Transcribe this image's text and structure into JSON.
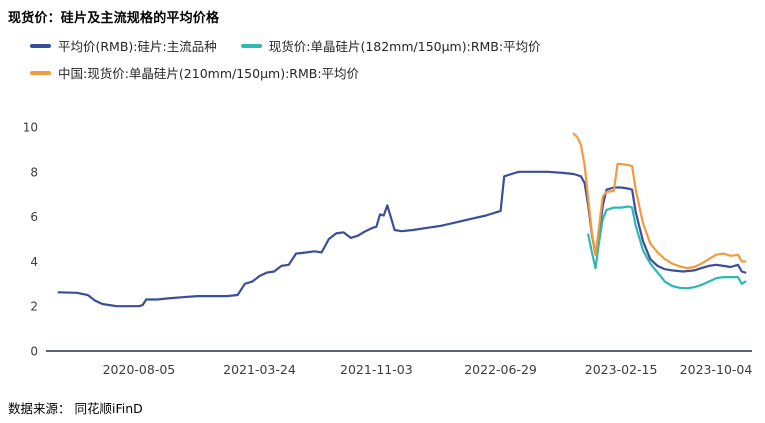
{
  "title": "现货价：硅片及主流规格的平均价格",
  "footer": "数据来源： 同花顺iFinD",
  "chart_data": {
    "type": "line",
    "title": "现货价：硅片及主流规格的平均价格",
    "xlabel": "",
    "ylabel": "",
    "ylim": [
      0,
      10
    ],
    "yticks": [
      0,
      2,
      4,
      6,
      8,
      10
    ],
    "grid": false,
    "legend_position": "top-left",
    "x_domain": [
      "2020-03-01",
      "2023-10-20"
    ],
    "xticks": [
      "2020-08-05",
      "2021-03-24",
      "2021-11-03",
      "2022-06-29",
      "2023-02-15",
      "2023-10-04"
    ],
    "series": [
      {
        "name": "平均价(RMB):硅片:主流品种",
        "color": "#3b4e9a",
        "points": [
          [
            "2020-03-04",
            2.62
          ],
          [
            "2020-04-08",
            2.6
          ],
          [
            "2020-04-29",
            2.5
          ],
          [
            "2020-05-13",
            2.25
          ],
          [
            "2020-05-27",
            2.1
          ],
          [
            "2020-06-10",
            2.05
          ],
          [
            "2020-06-24",
            2.0
          ],
          [
            "2020-07-22",
            2.0
          ],
          [
            "2020-08-05",
            2.0
          ],
          [
            "2020-08-12",
            2.05
          ],
          [
            "2020-08-19",
            2.3
          ],
          [
            "2020-09-09",
            2.3
          ],
          [
            "2020-09-30",
            2.35
          ],
          [
            "2020-10-28",
            2.4
          ],
          [
            "2020-11-25",
            2.45
          ],
          [
            "2020-12-23",
            2.45
          ],
          [
            "2021-01-20",
            2.45
          ],
          [
            "2021-02-10",
            2.5
          ],
          [
            "2021-02-24",
            3.0
          ],
          [
            "2021-03-10",
            3.1
          ],
          [
            "2021-03-24",
            3.35
          ],
          [
            "2021-04-07",
            3.5
          ],
          [
            "2021-04-21",
            3.55
          ],
          [
            "2021-05-05",
            3.8
          ],
          [
            "2021-05-19",
            3.85
          ],
          [
            "2021-06-02",
            4.35
          ],
          [
            "2021-06-23",
            4.4
          ],
          [
            "2021-07-07",
            4.45
          ],
          [
            "2021-07-21",
            4.4
          ],
          [
            "2021-08-04",
            5.0
          ],
          [
            "2021-08-18",
            5.25
          ],
          [
            "2021-09-01",
            5.3
          ],
          [
            "2021-09-15",
            5.05
          ],
          [
            "2021-09-29",
            5.15
          ],
          [
            "2021-10-13",
            5.35
          ],
          [
            "2021-10-27",
            5.5
          ],
          [
            "2021-11-03",
            5.55
          ],
          [
            "2021-11-10",
            6.1
          ],
          [
            "2021-11-17",
            6.05
          ],
          [
            "2021-11-24",
            6.5
          ],
          [
            "2021-12-01",
            5.95
          ],
          [
            "2021-12-08",
            5.4
          ],
          [
            "2021-12-22",
            5.35
          ],
          [
            "2022-01-12",
            5.4
          ],
          [
            "2022-02-09",
            5.5
          ],
          [
            "2022-03-09",
            5.6
          ],
          [
            "2022-04-06",
            5.75
          ],
          [
            "2022-05-04",
            5.9
          ],
          [
            "2022-06-01",
            6.05
          ],
          [
            "2022-06-22",
            6.2
          ],
          [
            "2022-06-29",
            6.25
          ],
          [
            "2022-07-06",
            7.8
          ],
          [
            "2022-07-20",
            7.9
          ],
          [
            "2022-08-03",
            8.0
          ],
          [
            "2022-08-31",
            8.0
          ],
          [
            "2022-09-28",
            8.0
          ],
          [
            "2022-10-26",
            7.95
          ],
          [
            "2022-11-16",
            7.9
          ],
          [
            "2022-11-30",
            7.8
          ],
          [
            "2022-12-07",
            7.5
          ],
          [
            "2022-12-14",
            6.5
          ],
          [
            "2022-12-21",
            5.2
          ],
          [
            "2022-12-28",
            4.3
          ],
          [
            "2023-01-04",
            5.3
          ],
          [
            "2023-01-11",
            6.5
          ],
          [
            "2023-01-18",
            7.2
          ],
          [
            "2023-02-01",
            7.3
          ],
          [
            "2023-02-15",
            7.3
          ],
          [
            "2023-03-01",
            7.25
          ],
          [
            "2023-03-08",
            7.2
          ],
          [
            "2023-03-15",
            6.2
          ],
          [
            "2023-03-29",
            4.9
          ],
          [
            "2023-04-12",
            4.1
          ],
          [
            "2023-04-26",
            3.8
          ],
          [
            "2023-05-10",
            3.65
          ],
          [
            "2023-05-24",
            3.6
          ],
          [
            "2023-06-14",
            3.55
          ],
          [
            "2023-07-05",
            3.6
          ],
          [
            "2023-07-19",
            3.7
          ],
          [
            "2023-08-02",
            3.8
          ],
          [
            "2023-08-16",
            3.85
          ],
          [
            "2023-08-30",
            3.8
          ],
          [
            "2023-09-13",
            3.75
          ],
          [
            "2023-09-27",
            3.85
          ],
          [
            "2023-10-04",
            3.55
          ],
          [
            "2023-10-11",
            3.5
          ]
        ]
      },
      {
        "name": "现货价:单晶硅片(182mm/150μm):RMB:平均价",
        "color": "#2eb8b0",
        "points": [
          [
            "2022-12-14",
            5.2
          ],
          [
            "2022-12-21",
            4.4
          ],
          [
            "2022-12-28",
            3.7
          ],
          [
            "2023-01-04",
            4.9
          ],
          [
            "2023-01-11",
            5.9
          ],
          [
            "2023-01-18",
            6.3
          ],
          [
            "2023-02-01",
            6.4
          ],
          [
            "2023-02-15",
            6.4
          ],
          [
            "2023-03-01",
            6.45
          ],
          [
            "2023-03-08",
            6.4
          ],
          [
            "2023-03-15",
            5.6
          ],
          [
            "2023-03-29",
            4.5
          ],
          [
            "2023-04-12",
            3.9
          ],
          [
            "2023-04-26",
            3.5
          ],
          [
            "2023-05-10",
            3.1
          ],
          [
            "2023-05-24",
            2.9
          ],
          [
            "2023-06-07",
            2.82
          ],
          [
            "2023-06-21",
            2.8
          ],
          [
            "2023-07-05",
            2.85
          ],
          [
            "2023-07-19",
            2.95
          ],
          [
            "2023-08-02",
            3.1
          ],
          [
            "2023-08-16",
            3.25
          ],
          [
            "2023-08-30",
            3.3
          ],
          [
            "2023-09-13",
            3.3
          ],
          [
            "2023-09-27",
            3.3
          ],
          [
            "2023-10-04",
            3.0
          ],
          [
            "2023-10-11",
            3.1
          ]
        ]
      },
      {
        "name": "中国:现货价:单晶硅片(210mm/150μm):RMB:平均价",
        "color": "#f29a3e",
        "points": [
          [
            "2022-11-16",
            9.7
          ],
          [
            "2022-11-23",
            9.55
          ],
          [
            "2022-11-30",
            9.2
          ],
          [
            "2022-12-07",
            8.3
          ],
          [
            "2022-12-14",
            6.8
          ],
          [
            "2022-12-21",
            5.3
          ],
          [
            "2022-12-28",
            4.3
          ],
          [
            "2023-01-04",
            5.6
          ],
          [
            "2023-01-11",
            6.9
          ],
          [
            "2023-01-18",
            7.1
          ],
          [
            "2023-02-01",
            7.15
          ],
          [
            "2023-02-08",
            8.35
          ],
          [
            "2023-02-15",
            8.35
          ],
          [
            "2023-03-01",
            8.3
          ],
          [
            "2023-03-08",
            8.25
          ],
          [
            "2023-03-15",
            7.2
          ],
          [
            "2023-03-29",
            5.7
          ],
          [
            "2023-04-12",
            4.8
          ],
          [
            "2023-04-26",
            4.4
          ],
          [
            "2023-05-10",
            4.1
          ],
          [
            "2023-05-24",
            3.9
          ],
          [
            "2023-06-07",
            3.78
          ],
          [
            "2023-06-21",
            3.7
          ],
          [
            "2023-07-05",
            3.75
          ],
          [
            "2023-07-19",
            3.9
          ],
          [
            "2023-08-02",
            4.1
          ],
          [
            "2023-08-16",
            4.3
          ],
          [
            "2023-08-30",
            4.35
          ],
          [
            "2023-09-13",
            4.25
          ],
          [
            "2023-09-27",
            4.3
          ],
          [
            "2023-10-04",
            4.0
          ],
          [
            "2023-10-11",
            4.0
          ]
        ]
      }
    ]
  }
}
